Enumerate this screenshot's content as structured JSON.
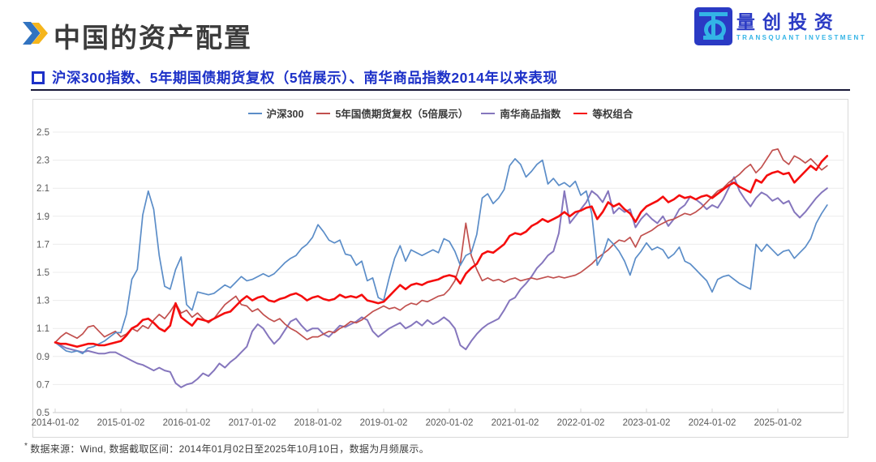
{
  "page": {
    "title": "中国的资产配置"
  },
  "logo": {
    "name": "量创投资",
    "subtitle": "TRANSQUANT INVESTMENT"
  },
  "section": {
    "subtitle": "沪深300指数、5年期国债期货复权（5倍展示）、南华商品指数2014年以来表现"
  },
  "footnote": {
    "marker": "*",
    "text": "数据来源：Wind, 数据截取区间：2014年01月02日至2025年10月10日，数据为月频展示。"
  },
  "colors": {
    "title": "#3b3b3b",
    "subtitle": "#1d31c8",
    "rule": "#181838",
    "logo_blue": "#2a3ac4",
    "logo_cyan": "#33b4e6",
    "chevron_blue": "#3173c0",
    "chevron_gold": "#f5b51c",
    "grid": "#ececec",
    "axis": "#c9c9c9",
    "tick": "#d5d5d5",
    "axis_label": "#595959",
    "panel_border": "#d9d9d9"
  },
  "chart_data": {
    "type": "line",
    "title": "",
    "xlabel": "",
    "ylabel": "",
    "ylim": [
      0.5,
      2.5
    ],
    "y_ticks": [
      0.5,
      0.7,
      0.9,
      1.1,
      1.3,
      1.5,
      1.7,
      1.9,
      2.1,
      2.3,
      2.5
    ],
    "grid": "horizontal",
    "legend_position": "top-center",
    "x_frequency": "monthly",
    "x_start": "2014-01",
    "x_end": "2025-10",
    "x_tick_labels": [
      "2014-01-02",
      "2015-01-02",
      "2016-01-02",
      "2017-01-02",
      "2018-01-02",
      "2019-01-02",
      "2020-01-02",
      "2021-01-02",
      "2022-01-02",
      "2023-01-02",
      "2024-01-02",
      "2025-01-02"
    ],
    "x_tick_month_index": [
      0,
      12,
      24,
      36,
      48,
      60,
      72,
      84,
      96,
      108,
      120,
      132
    ],
    "series": [
      {
        "name": "沪深300",
        "color": "#5b8dc8",
        "width": 1.7,
        "values": [
          1.0,
          0.97,
          0.94,
          0.93,
          0.94,
          0.92,
          0.96,
          0.97,
          0.99,
          1.01,
          1.04,
          1.07,
          1.07,
          1.2,
          1.45,
          1.52,
          1.91,
          2.08,
          1.95,
          1.62,
          1.4,
          1.38,
          1.52,
          1.61,
          1.27,
          1.23,
          1.36,
          1.35,
          1.34,
          1.35,
          1.38,
          1.41,
          1.39,
          1.43,
          1.47,
          1.44,
          1.45,
          1.47,
          1.49,
          1.47,
          1.49,
          1.53,
          1.57,
          1.6,
          1.62,
          1.67,
          1.7,
          1.75,
          1.84,
          1.79,
          1.73,
          1.71,
          1.73,
          1.63,
          1.62,
          1.55,
          1.58,
          1.44,
          1.46,
          1.32,
          1.3,
          1.46,
          1.6,
          1.69,
          1.58,
          1.66,
          1.64,
          1.62,
          1.64,
          1.66,
          1.64,
          1.74,
          1.72,
          1.65,
          1.55,
          1.62,
          1.64,
          1.77,
          2.03,
          2.06,
          1.99,
          2.03,
          2.09,
          2.26,
          2.31,
          2.27,
          2.18,
          2.22,
          2.27,
          2.3,
          2.13,
          2.17,
          2.12,
          2.14,
          2.11,
          2.15,
          2.05,
          2.08,
          1.92,
          1.55,
          1.62,
          1.74,
          1.7,
          1.65,
          1.58,
          1.48,
          1.6,
          1.65,
          1.71,
          1.66,
          1.68,
          1.66,
          1.6,
          1.63,
          1.68,
          1.58,
          1.56,
          1.52,
          1.48,
          1.44,
          1.36,
          1.45,
          1.47,
          1.48,
          1.45,
          1.42,
          1.4,
          1.38,
          1.7,
          1.65,
          1.7,
          1.66,
          1.62,
          1.65,
          1.66,
          1.6,
          1.64,
          1.68,
          1.74,
          1.85,
          1.92,
          1.98
        ]
      },
      {
        "name": "5年国债期货复权（5倍展示）",
        "color": "#c1504e",
        "width": 1.7,
        "values": [
          1.0,
          1.04,
          1.07,
          1.05,
          1.03,
          1.06,
          1.11,
          1.12,
          1.08,
          1.04,
          1.06,
          1.08,
          1.04,
          1.06,
          1.1,
          1.08,
          1.12,
          1.1,
          1.16,
          1.2,
          1.17,
          1.22,
          1.28,
          1.21,
          1.23,
          1.18,
          1.21,
          1.17,
          1.14,
          1.17,
          1.22,
          1.27,
          1.3,
          1.33,
          1.27,
          1.26,
          1.22,
          1.24,
          1.2,
          1.17,
          1.15,
          1.17,
          1.13,
          1.1,
          1.08,
          1.05,
          1.02,
          1.04,
          1.04,
          1.06,
          1.08,
          1.07,
          1.1,
          1.12,
          1.15,
          1.14,
          1.16,
          1.19,
          1.22,
          1.24,
          1.26,
          1.24,
          1.25,
          1.23,
          1.26,
          1.28,
          1.27,
          1.3,
          1.29,
          1.31,
          1.33,
          1.34,
          1.38,
          1.44,
          1.56,
          1.85,
          1.62,
          1.52,
          1.44,
          1.46,
          1.44,
          1.45,
          1.43,
          1.45,
          1.46,
          1.44,
          1.45,
          1.46,
          1.45,
          1.46,
          1.47,
          1.46,
          1.47,
          1.46,
          1.47,
          1.48,
          1.5,
          1.53,
          1.56,
          1.6,
          1.63,
          1.66,
          1.7,
          1.73,
          1.72,
          1.75,
          1.68,
          1.76,
          1.78,
          1.8,
          1.83,
          1.85,
          1.87,
          1.88,
          1.9,
          1.92,
          1.91,
          1.93,
          1.96,
          2.0,
          2.04,
          2.08,
          2.1,
          2.14,
          2.17,
          2.2,
          2.24,
          2.27,
          2.21,
          2.25,
          2.31,
          2.37,
          2.38,
          2.3,
          2.27,
          2.33,
          2.31,
          2.28,
          2.31,
          2.27,
          2.23,
          2.26
        ]
      },
      {
        "name": "南华商品指数",
        "color": "#8576bd",
        "width": 2.0,
        "values": [
          1.0,
          0.98,
          0.96,
          0.95,
          0.94,
          0.93,
          0.94,
          0.93,
          0.92,
          0.92,
          0.93,
          0.93,
          0.91,
          0.89,
          0.87,
          0.85,
          0.84,
          0.82,
          0.8,
          0.82,
          0.8,
          0.79,
          0.71,
          0.68,
          0.7,
          0.71,
          0.74,
          0.78,
          0.76,
          0.8,
          0.85,
          0.82,
          0.86,
          0.89,
          0.93,
          0.97,
          1.08,
          1.13,
          1.1,
          1.04,
          0.99,
          1.03,
          1.09,
          1.15,
          1.17,
          1.12,
          1.08,
          1.1,
          1.1,
          1.06,
          1.04,
          1.08,
          1.12,
          1.11,
          1.13,
          1.15,
          1.18,
          1.16,
          1.08,
          1.04,
          1.07,
          1.1,
          1.12,
          1.14,
          1.1,
          1.12,
          1.15,
          1.12,
          1.16,
          1.13,
          1.15,
          1.18,
          1.15,
          1.1,
          0.98,
          0.95,
          1.01,
          1.06,
          1.1,
          1.13,
          1.15,
          1.17,
          1.23,
          1.3,
          1.32,
          1.38,
          1.42,
          1.47,
          1.53,
          1.57,
          1.62,
          1.65,
          1.78,
          2.08,
          1.85,
          1.9,
          1.95,
          2.0,
          2.08,
          2.05,
          2.0,
          2.08,
          1.92,
          1.96,
          1.93,
          1.95,
          1.82,
          1.88,
          1.92,
          1.88,
          1.85,
          1.9,
          1.83,
          1.88,
          1.95,
          1.98,
          2.04,
          2.02,
          1.99,
          1.95,
          1.98,
          1.96,
          2.02,
          2.1,
          2.18,
          2.08,
          2.02,
          1.97,
          2.03,
          2.07,
          2.05,
          2.01,
          2.03,
          1.99,
          2.01,
          1.93,
          1.89,
          1.93,
          1.98,
          2.03,
          2.07,
          2.1
        ]
      },
      {
        "name": "等权组合",
        "color": "#f50d0d",
        "width": 2.6,
        "values": [
          1.0,
          0.99,
          0.99,
          0.98,
          0.97,
          0.98,
          0.99,
          0.99,
          0.98,
          0.98,
          0.99,
          1.0,
          1.01,
          1.05,
          1.1,
          1.12,
          1.16,
          1.17,
          1.14,
          1.1,
          1.08,
          1.12,
          1.28,
          1.18,
          1.15,
          1.12,
          1.17,
          1.16,
          1.15,
          1.17,
          1.19,
          1.21,
          1.22,
          1.26,
          1.3,
          1.33,
          1.3,
          1.32,
          1.33,
          1.3,
          1.29,
          1.31,
          1.32,
          1.34,
          1.35,
          1.33,
          1.3,
          1.32,
          1.33,
          1.31,
          1.3,
          1.31,
          1.34,
          1.32,
          1.33,
          1.32,
          1.34,
          1.3,
          1.29,
          1.28,
          1.29,
          1.33,
          1.37,
          1.41,
          1.38,
          1.41,
          1.42,
          1.41,
          1.43,
          1.44,
          1.45,
          1.47,
          1.48,
          1.47,
          1.42,
          1.49,
          1.53,
          1.56,
          1.63,
          1.65,
          1.64,
          1.67,
          1.7,
          1.76,
          1.78,
          1.77,
          1.79,
          1.83,
          1.85,
          1.88,
          1.86,
          1.88,
          1.9,
          1.93,
          1.9,
          1.93,
          1.94,
          1.96,
          1.97,
          1.88,
          1.93,
          2.0,
          1.97,
          1.99,
          1.95,
          1.92,
          1.86,
          1.93,
          1.97,
          1.99,
          2.01,
          2.04,
          2.0,
          2.02,
          2.05,
          2.03,
          2.04,
          2.02,
          2.04,
          2.05,
          2.03,
          2.06,
          2.09,
          2.12,
          2.14,
          2.11,
          2.09,
          2.07,
          2.16,
          2.14,
          2.19,
          2.21,
          2.22,
          2.2,
          2.21,
          2.14,
          2.18,
          2.22,
          2.26,
          2.23,
          2.29,
          2.33
        ]
      }
    ]
  }
}
